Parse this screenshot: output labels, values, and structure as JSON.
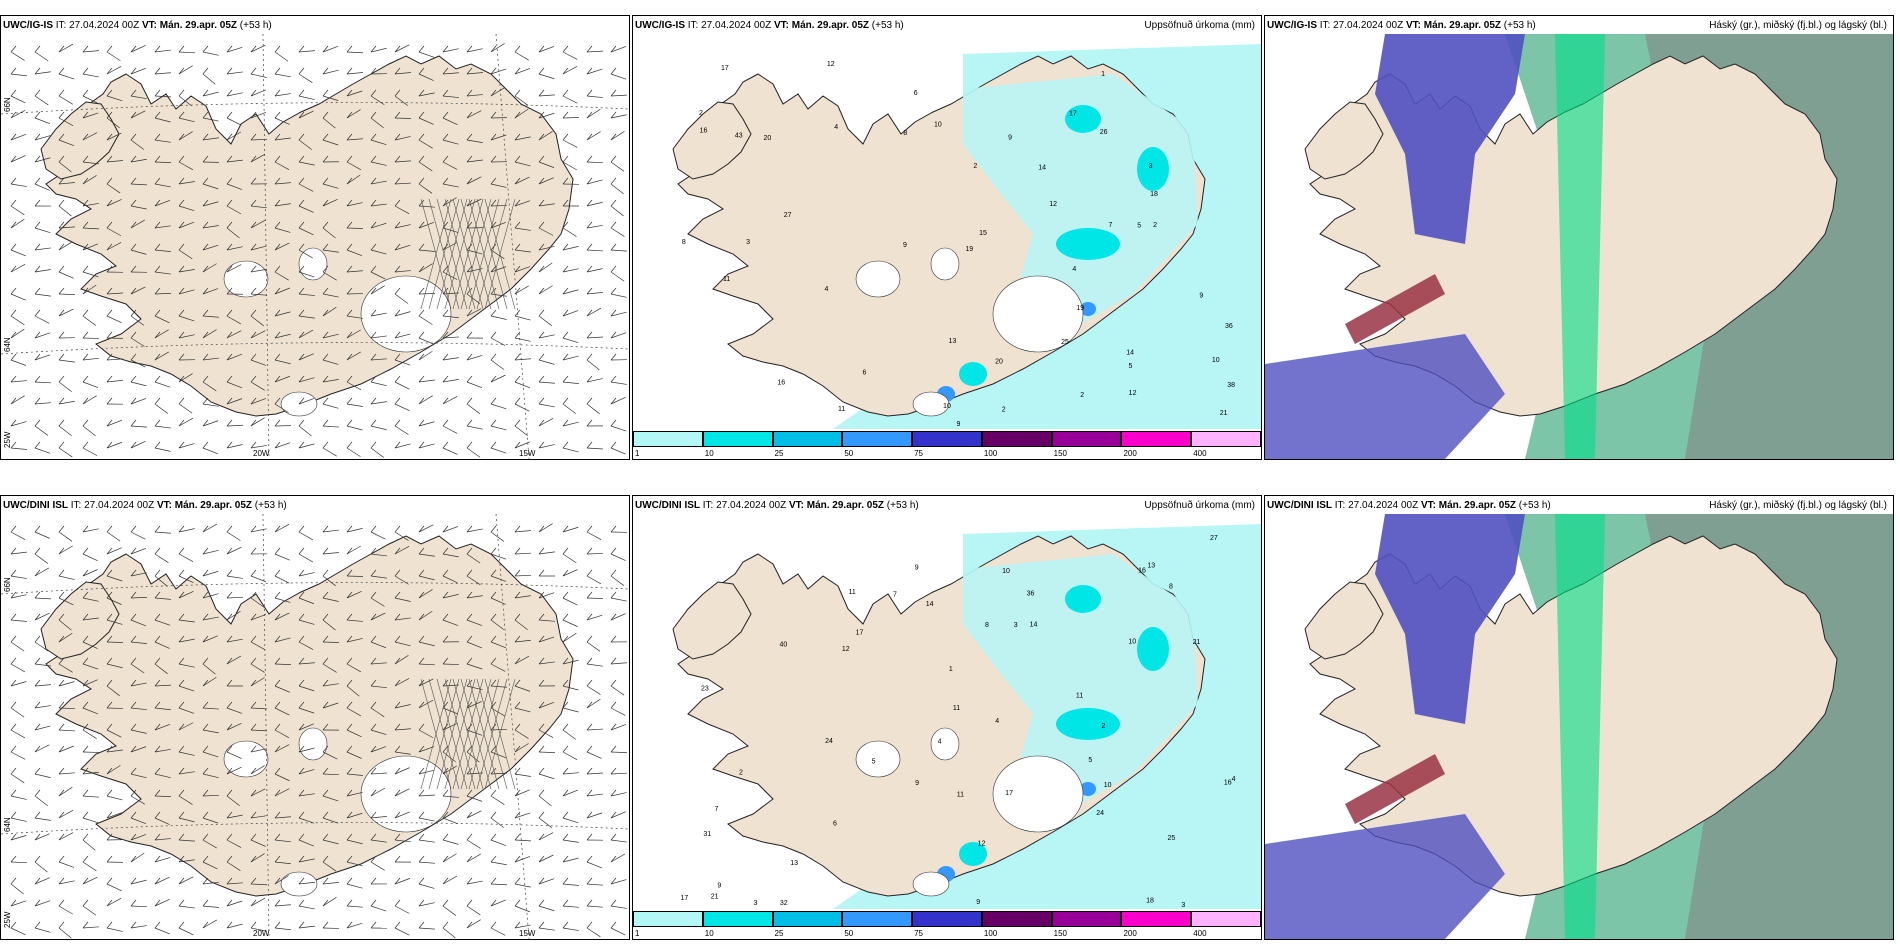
{
  "rows": [
    {
      "model": "UWC/IG-IS",
      "it": "IT: 27.04.2024 00Z",
      "vt_label": "VT:",
      "vt": "Mán. 29.apr. 05Z",
      "lead": "(+53 h)",
      "lat_labels": [
        "66N",
        "64N"
      ],
      "lon_labels": [
        "25W",
        "20W",
        "15W"
      ],
      "precip_values": [
        "2",
        "5",
        "2",
        "3",
        "10",
        "10",
        "2",
        "17",
        "27",
        "11",
        "14",
        "9",
        "4",
        "43",
        "38",
        "26",
        "36",
        "25",
        "20",
        "19",
        "16",
        "13",
        "12",
        "9",
        "18",
        "20",
        "17",
        "21",
        "15",
        "6",
        "16",
        "3",
        "1",
        "2",
        "4",
        "8",
        "12",
        "4",
        "2",
        "12",
        "19",
        "8",
        "7",
        "11",
        "14",
        "9",
        "10",
        "9",
        "6",
        "5"
      ]
    },
    {
      "model": "UWC/DINI ISL",
      "it": "IT: 27.04.2024 00Z",
      "vt_label": "VT:",
      "vt": "Mán. 29.apr. 05Z",
      "lead": "(+53 h)",
      "lat_labels": [
        "66N",
        "64N"
      ],
      "lon_labels": [
        "25W",
        "20W",
        "15W"
      ],
      "precip_values": [
        "1",
        "3",
        "10",
        "9",
        "2",
        "4",
        "5",
        "11",
        "18",
        "24",
        "14",
        "40",
        "36",
        "27",
        "25",
        "24",
        "17",
        "13",
        "16",
        "21",
        "12",
        "14",
        "23",
        "32",
        "31",
        "21",
        "11",
        "17",
        "12",
        "10",
        "8",
        "7",
        "9",
        "6",
        "5",
        "11",
        "2",
        "3",
        "4",
        "7",
        "17",
        "10",
        "9",
        "11",
        "13",
        "4",
        "16",
        "9",
        "3",
        "8"
      ]
    }
  ],
  "precip_title": "Uppsöfnuð úrkoma (mm)",
  "cloud_title": "Háský (gr.), miðský (fj.bl.) og lágský (bl.)",
  "colorbar": {
    "labels": [
      "1",
      "10",
      "25",
      "50",
      "75",
      "100",
      "150",
      "200",
      "400"
    ],
    "colors": [
      "#b3f7f7",
      "#00e6e6",
      "#00bfe6",
      "#3399ff",
      "#3333cc",
      "#660066",
      "#990099",
      "#ff00cc",
      "#ffb3ff"
    ]
  },
  "colors": {
    "land": "#efe2d0",
    "sea_precip": "#b8f5f5",
    "snow": "#ffffff",
    "barb": "#333333",
    "cloud_high": "#7f7f7f",
    "cloud_mid": "#33cc88",
    "cloud_low": "#3333aa"
  }
}
